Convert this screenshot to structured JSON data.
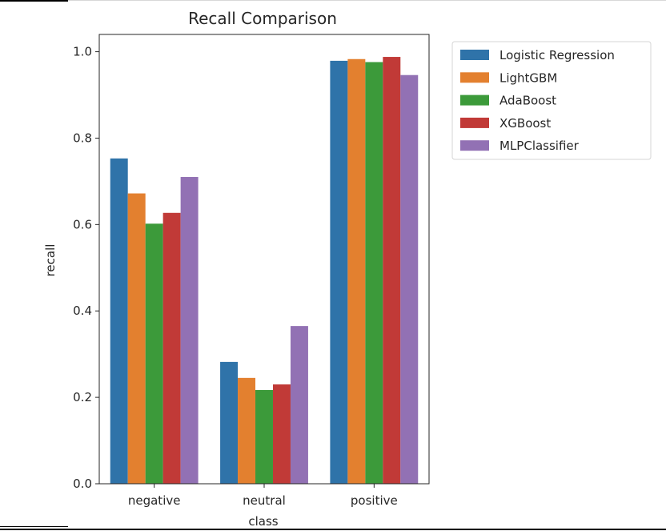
{
  "chart_data": {
    "type": "bar",
    "title": "Recall Comparison",
    "xlabel": "class",
    "ylabel": "recall",
    "categories": [
      "negative",
      "neutral",
      "positive"
    ],
    "ylim": [
      0,
      1.04
    ],
    "yticks": [
      "0.0",
      "0.2",
      "0.4",
      "0.6",
      "0.8",
      "1.0"
    ],
    "grid": false,
    "legend_position": "outside-top-right",
    "series": [
      {
        "name": "Logistic Regression",
        "color": "#2f73a9",
        "values": [
          0.753,
          0.282,
          0.979
        ]
      },
      {
        "name": "LightGBM",
        "color": "#e3802f",
        "values": [
          0.672,
          0.245,
          0.983
        ]
      },
      {
        "name": "AdaBoost",
        "color": "#3c9a3a",
        "values": [
          0.602,
          0.217,
          0.976
        ]
      },
      {
        "name": "XGBoost",
        "color": "#c13a37",
        "values": [
          0.627,
          0.23,
          0.988
        ]
      },
      {
        "name": "MLPClassifier",
        "color": "#9271b4",
        "values": [
          0.71,
          0.365,
          0.946
        ]
      }
    ]
  }
}
